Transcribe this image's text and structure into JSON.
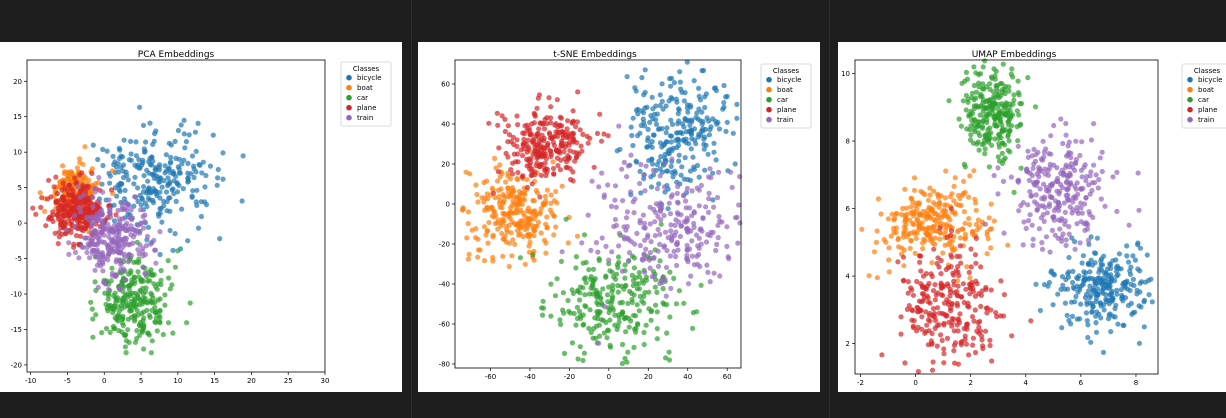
{
  "chart_data": [
    {
      "type": "scatter",
      "title": "PCA Embeddings",
      "xlabel": "",
      "ylabel": "",
      "xlim": [
        -10.5,
        30
      ],
      "ylim": [
        -21,
        23
      ],
      "xticks": [
        "-10",
        "-5",
        "0",
        "5",
        "10",
        "15",
        "20",
        "25",
        "30"
      ],
      "yticks": [
        "-20",
        "-15",
        "-10",
        "-5",
        "0",
        "5",
        "10",
        "15",
        "20"
      ],
      "grid": false,
      "legend": {
        "title": "Classes",
        "placement": "outside-right",
        "items": [
          "bicycle",
          "boat",
          "car",
          "plane",
          "train"
        ]
      },
      "series": [
        {
          "name": "bicycle",
          "color": "#1f77b4",
          "approx_center": [
            7,
            6
          ],
          "approx_spread": [
            4,
            4
          ]
        },
        {
          "name": "boat",
          "color": "#ff7f0e",
          "approx_center": [
            -4,
            4
          ],
          "approx_spread": [
            1.5,
            2
          ]
        },
        {
          "name": "car",
          "color": "#2ca02c",
          "approx_center": [
            4,
            -11
          ],
          "approx_spread": [
            2.5,
            3
          ]
        },
        {
          "name": "plane",
          "color": "#d62728",
          "approx_center": [
            -4,
            2
          ],
          "approx_spread": [
            2,
            2
          ]
        },
        {
          "name": "train",
          "color": "#9467bd",
          "approx_center": [
            1,
            -2
          ],
          "approx_spread": [
            2.5,
            3
          ]
        }
      ]
    },
    {
      "type": "scatter",
      "title": "t-SNE Embeddings",
      "xlabel": "",
      "ylabel": "",
      "xlim": [
        -78,
        67
      ],
      "ylim": [
        -82,
        72
      ],
      "xticks": [
        "-60",
        "-40",
        "-20",
        "0",
        "20",
        "40",
        "60"
      ],
      "yticks": [
        "-80",
        "-60",
        "-40",
        "-20",
        "0",
        "20",
        "40",
        "60"
      ],
      "grid": false,
      "legend": {
        "title": "Classes",
        "placement": "top-right",
        "items": [
          "bicycle",
          "boat",
          "car",
          "plane",
          "train"
        ]
      },
      "series": [
        {
          "name": "bicycle",
          "color": "#1f77b4",
          "approx_center": [
            33,
            35
          ],
          "approx_spread": [
            13,
            15
          ]
        },
        {
          "name": "boat",
          "color": "#ff7f0e",
          "approx_center": [
            -48,
            -5
          ],
          "approx_spread": [
            12,
            12
          ]
        },
        {
          "name": "car",
          "color": "#2ca02c",
          "approx_center": [
            3,
            -50
          ],
          "approx_spread": [
            17,
            13
          ]
        },
        {
          "name": "plane",
          "color": "#d62728",
          "approx_center": [
            -30,
            30
          ],
          "approx_spread": [
            11,
            10
          ]
        },
        {
          "name": "train",
          "color": "#9467bd",
          "approx_center": [
            30,
            -10
          ],
          "approx_spread": [
            20,
            15
          ]
        }
      ]
    },
    {
      "type": "scatter",
      "title": "UMAP Embeddings",
      "xlabel": "",
      "ylabel": "",
      "xlim": [
        -2.2,
        8.8
      ],
      "ylim": [
        1.1,
        10.4
      ],
      "xticks": [
        "-2",
        "0",
        "2",
        "4",
        "6",
        "8"
      ],
      "yticks": [
        "2",
        "4",
        "6",
        "8",
        "10"
      ],
      "grid": false,
      "legend": {
        "title": "Classes",
        "placement": "outside-right",
        "items": [
          "bicycle",
          "boat",
          "car",
          "plane",
          "train"
        ]
      },
      "series": [
        {
          "name": "bicycle",
          "color": "#1f77b4",
          "approx_center": [
            6.8,
            3.7
          ],
          "approx_spread": [
            0.9,
            0.6
          ]
        },
        {
          "name": "boat",
          "color": "#ff7f0e",
          "approx_center": [
            0.5,
            5.5
          ],
          "approx_spread": [
            1.0,
            0.6
          ]
        },
        {
          "name": "car",
          "color": "#2ca02c",
          "approx_center": [
            2.8,
            8.8
          ],
          "approx_spread": [
            0.6,
            0.7
          ]
        },
        {
          "name": "plane",
          "color": "#d62728",
          "approx_center": [
            1.2,
            3.2
          ],
          "approx_spread": [
            0.9,
            0.9
          ]
        },
        {
          "name": "train",
          "color": "#9467bd",
          "approx_center": [
            5.2,
            6.5
          ],
          "approx_spread": [
            0.9,
            0.8
          ]
        }
      ]
    }
  ]
}
